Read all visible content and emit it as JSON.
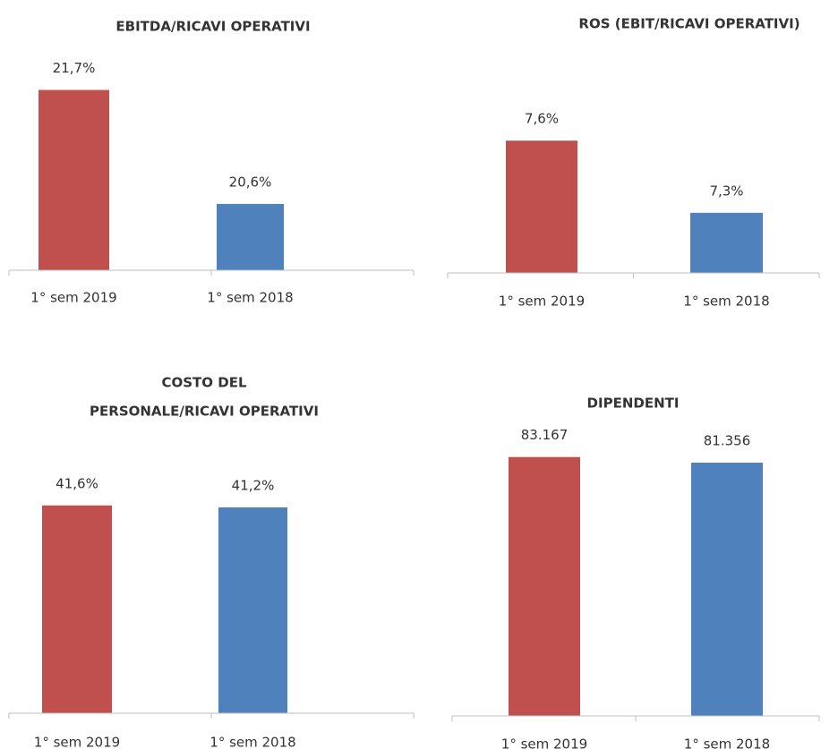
{
  "chart_data": [
    {
      "type": "bar",
      "title": "EBITDA/RICAVI OPERATIVI",
      "categories": [
        "1° sem 2019",
        "1° sem 2018"
      ],
      "values": [
        21.7,
        20.6
      ],
      "value_labels": [
        "21,7%",
        "20,6%"
      ],
      "colors": [
        "#c0504d",
        "#4f81bd"
      ],
      "ylim": [
        19.96,
        22.05
      ]
    },
    {
      "type": "bar",
      "title": "ROS (EBIT/RICAVI OPERATIVI)",
      "categories": [
        "1° sem 2019",
        "1° sem 2018"
      ],
      "values": [
        7.6,
        7.3
      ],
      "value_labels": [
        "7,6%",
        "7,3%"
      ],
      "colors": [
        "#c0504d",
        "#4f81bd"
      ],
      "ylim": [
        7.05,
        7.85
      ]
    },
    {
      "type": "bar",
      "title": [
        "COSTO DEL",
        "PERSONALE/RICAVI OPERATIVI"
      ],
      "categories": [
        "1° sem 2019",
        "1° sem 2018"
      ],
      "values": [
        41.6,
        41.2
      ],
      "value_labels": [
        "41,6%",
        "41,2%"
      ],
      "colors": [
        "#c0504d",
        "#4f81bd"
      ],
      "ylim": [
        0,
        55
      ]
    },
    {
      "type": "bar",
      "title": "DIPENDENTI",
      "categories": [
        "1° sem 2019",
        "1° sem 2018"
      ],
      "values": [
        83167,
        81356
      ],
      "value_labels": [
        "83.167",
        "81.356"
      ],
      "colors": [
        "#c0504d",
        "#4f81bd"
      ],
      "ylim": [
        0,
        92000
      ]
    }
  ]
}
